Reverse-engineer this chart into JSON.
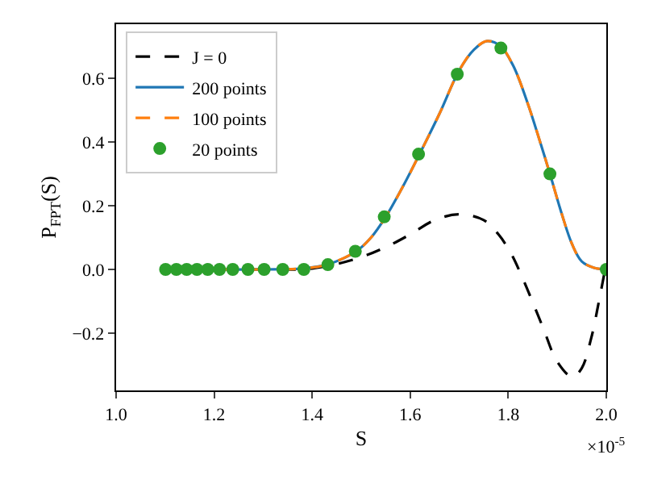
{
  "chart_data": {
    "type": "line",
    "xlabel": "S",
    "ylabel": "P$_{FPT}$(S)",
    "xlim": [
      1.0,
      2.0
    ],
    "xticks": [
      {
        "value": 1.0,
        "label": "1.0"
      },
      1.2,
      1.4,
      1.6,
      1.8,
      {
        "value": 2.0,
        "label": "2.0"
      }
    ],
    "ylim": [
      -0.38,
      0.77
    ],
    "yticks": [
      {
        "value": -0.2,
        "label": "−0.2"
      },
      {
        "value": 0,
        "label": "0.0"
      },
      0.2,
      0.4,
      0.6
    ],
    "annotations": [
      "×10$^{-5}$"
    ],
    "legend": "top left",
    "series": [
      {
        "name": "J = 0",
        "line_style": "dashed",
        "color": "#000000",
        "x": [
          1.1,
          1.3,
          1.4,
          1.487,
          1.55,
          1.6,
          1.65,
          1.7,
          1.75,
          1.78,
          1.805,
          1.83,
          1.871,
          1.9,
          1.931,
          1.95,
          1.969,
          1.985,
          2.0
        ],
        "values": [
          0,
          0,
          0.003,
          0.032,
          0.07,
          0.11,
          0.155,
          0.173,
          0.155,
          0.11,
          0.052,
          -0.03,
          -0.183,
          -0.29,
          -0.338,
          -0.31,
          -0.217,
          -0.1,
          0.02
        ]
      },
      {
        "name": "200 points",
        "line_style": "solid",
        "color": "#1f77b4",
        "x": [
          1.1,
          1.3,
          1.38,
          1.43,
          1.49,
          1.52,
          1.55,
          1.585,
          1.62,
          1.66,
          1.7,
          1.73,
          1.757,
          1.785,
          1.81,
          1.84,
          1.865,
          1.885,
          1.91,
          1.93,
          1.95,
          1.975,
          2.0
        ],
        "values": [
          0,
          0,
          0.003,
          0.015,
          0.057,
          0.1,
          0.165,
          0.26,
          0.365,
          0.49,
          0.625,
          0.69,
          0.717,
          0.7,
          0.64,
          0.52,
          0.4,
          0.3,
          0.17,
          0.08,
          0.025,
          0.005,
          0
        ]
      },
      {
        "name": "100 points",
        "line_style": "dashed",
        "color": "#ff7f0e",
        "x": [
          1.1,
          1.3,
          1.38,
          1.43,
          1.49,
          1.52,
          1.55,
          1.585,
          1.62,
          1.66,
          1.7,
          1.73,
          1.757,
          1.785,
          1.81,
          1.84,
          1.865,
          1.885,
          1.91,
          1.93,
          1.95,
          1.975,
          2.0
        ],
        "values": [
          0,
          0,
          0.003,
          0.015,
          0.057,
          0.1,
          0.165,
          0.26,
          0.365,
          0.49,
          0.625,
          0.69,
          0.717,
          0.7,
          0.64,
          0.52,
          0.4,
          0.3,
          0.17,
          0.08,
          0.025,
          0.005,
          0
        ]
      },
      {
        "name": "20 points",
        "type": "scatter",
        "marker": "circle",
        "color": "#2ca02c",
        "x": [
          1.101,
          1.123,
          1.144,
          1.165,
          1.187,
          1.211,
          1.238,
          1.269,
          1.302,
          1.34,
          1.383,
          1.432,
          1.488,
          1.547,
          1.617,
          1.696,
          1.785,
          1.885,
          2.0
        ],
        "values": [
          0,
          0,
          0,
          0,
          0,
          0,
          0,
          0,
          0,
          0,
          0,
          0.015,
          0.057,
          0.165,
          0.362,
          0.613,
          0.695,
          0.3,
          0
        ]
      }
    ]
  }
}
